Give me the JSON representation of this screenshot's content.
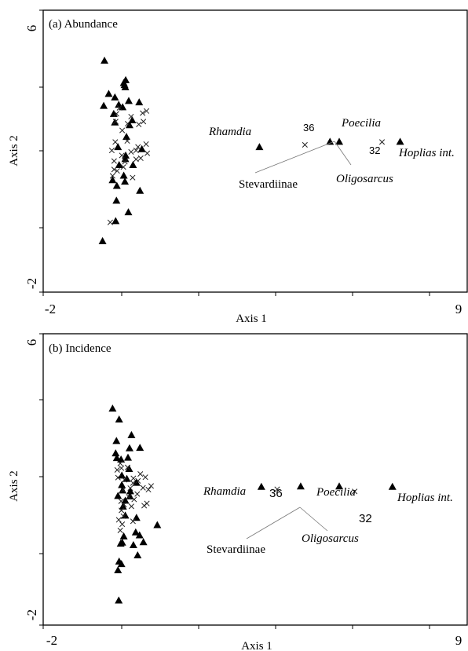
{
  "chart_data": [
    {
      "type": "scatter",
      "title": "(a) Abundance",
      "xlabel": "Axis 1",
      "ylabel": "Axis 2",
      "xlim": [
        -2,
        9
      ],
      "ylim": [
        -2,
        6
      ],
      "x_tick_labels": [
        "-2",
        "9"
      ],
      "y_tick_labels": [
        "6",
        "-2"
      ],
      "grid": false,
      "series": [
        {
          "marker": "triangle",
          "points": [
            [
              -0.41,
              4.57
            ],
            [
              -0.3,
              3.63
            ],
            [
              -0.43,
              3.29
            ],
            [
              -0.14,
              3.53
            ],
            [
              0.09,
              3.94
            ],
            [
              0.14,
              4.02
            ],
            [
              0.13,
              3.82
            ],
            [
              0.11,
              3.88
            ],
            [
              -0.04,
              3.32
            ],
            [
              0.22,
              3.43
            ],
            [
              0.49,
              3.39
            ],
            [
              0.06,
              3.25
            ],
            [
              -0.17,
              3.06
            ],
            [
              0.31,
              2.88
            ],
            [
              0.24,
              2.74
            ],
            [
              -0.14,
              2.82
            ],
            [
              0.16,
              2.41
            ],
            [
              -0.06,
              2.12
            ],
            [
              0.14,
              1.88
            ],
            [
              0.56,
              2.06
            ],
            [
              -0.03,
              1.61
            ],
            [
              0.13,
              1.78
            ],
            [
              0.33,
              1.61
            ],
            [
              0.09,
              1.31
            ],
            [
              -0.2,
              1.18
            ],
            [
              0.12,
              1.14
            ],
            [
              -0.09,
              1.02
            ],
            [
              0.51,
              0.88
            ],
            [
              -0.1,
              0.6
            ],
            [
              0.21,
              0.27
            ],
            [
              -0.12,
              0.02
            ],
            [
              -0.46,
              -0.55
            ],
            [
              3.61,
              2.12
            ],
            [
              5.44,
              2.27
            ],
            [
              5.68,
              2.27
            ],
            [
              7.26,
              2.27
            ]
          ]
        },
        {
          "marker": "cross",
          "points": [
            [
              -0.02,
              3.23
            ],
            [
              -0.1,
              3.06
            ],
            [
              -0.12,
              2.84
            ],
            [
              0.28,
              2.98
            ],
            [
              0.58,
              3.08
            ],
            [
              0.68,
              3.14
            ],
            [
              0.19,
              2.78
            ],
            [
              0.48,
              2.76
            ],
            [
              0.6,
              2.84
            ],
            [
              0.05,
              2.59
            ],
            [
              0.18,
              2.29
            ],
            [
              -0.13,
              2.26
            ],
            [
              -0.22,
              2.02
            ],
            [
              0.67,
              2.2
            ],
            [
              0.46,
              2.12
            ],
            [
              0.41,
              2.02
            ],
            [
              0.28,
              1.98
            ],
            [
              0.7,
              1.94
            ],
            [
              0.04,
              1.88
            ],
            [
              -0.16,
              1.72
            ],
            [
              0.53,
              1.8
            ],
            [
              0.41,
              1.77
            ],
            [
              0.12,
              1.7
            ],
            [
              0.08,
              1.55
            ],
            [
              -0.16,
              1.48
            ],
            [
              -0.08,
              1.44
            ],
            [
              -0.2,
              1.3
            ],
            [
              0.32,
              1.25
            ],
            [
              -0.26,
              -0.02
            ],
            [
              4.79,
              2.18
            ],
            [
              6.79,
              2.26
            ]
          ]
        }
      ],
      "annotations": [
        {
          "text": "Rhamdia",
          "x": 3.61,
          "y": 2.12,
          "italic": true
        },
        {
          "text": "36",
          "x": 4.79,
          "y": 2.18
        },
        {
          "text": "Poecilia",
          "x": 5.68,
          "y": 2.27,
          "italic": true
        },
        {
          "text": "32",
          "x": 6.79,
          "y": 2.26
        },
        {
          "text": "Hoplias int.",
          "x": 7.26,
          "y": 2.27,
          "italic": true
        },
        {
          "text": "Stevardiinae",
          "italic": false
        },
        {
          "text": "Oligosarcus",
          "italic": true
        }
      ]
    },
    {
      "type": "scatter",
      "title": "(b) Incidence",
      "xlabel": "Axis 1",
      "ylabel": "Axis 2",
      "xlim": [
        -2,
        9
      ],
      "ylim": [
        -2,
        6
      ],
      "x_tick_labels": [
        "-2",
        "9"
      ],
      "y_tick_labels": [
        "6",
        "-2"
      ],
      "grid": false,
      "series": [
        {
          "marker": "triangle",
          "points": [
            [
              -0.2,
              3.95
            ],
            [
              -0.03,
              3.65
            ],
            [
              0.29,
              3.22
            ],
            [
              -0.1,
              3.06
            ],
            [
              0.24,
              2.86
            ],
            [
              -0.12,
              2.72
            ],
            [
              0.51,
              2.87
            ],
            [
              -0.09,
              2.59
            ],
            [
              0.02,
              2.55
            ],
            [
              0.2,
              2.6
            ],
            [
              0.23,
              2.29
            ],
            [
              0.04,
              2.11
            ],
            [
              0.17,
              2.02
            ],
            [
              0.04,
              1.85
            ],
            [
              0.42,
              1.91
            ],
            [
              0.06,
              1.7
            ],
            [
              0.26,
              1.68
            ],
            [
              0.25,
              1.54
            ],
            [
              -0.06,
              1.55
            ],
            [
              0.13,
              1.42
            ],
            [
              0.07,
              1.26
            ],
            [
              0.13,
              1.01
            ],
            [
              0.42,
              0.95
            ],
            [
              0.09,
              0.44
            ],
            [
              0.4,
              0.55
            ],
            [
              0.5,
              0.47
            ],
            [
              0.96,
              0.75
            ],
            [
              0.6,
              0.28
            ],
            [
              0.05,
              0.27
            ],
            [
              0.01,
              0.24
            ],
            [
              0.34,
              0.2
            ],
            [
              0.45,
              -0.08
            ],
            [
              0.03,
              -0.32
            ],
            [
              -0.06,
              -0.49
            ],
            [
              -0.03,
              -0.25
            ],
            [
              -0.04,
              -1.32
            ],
            [
              3.66,
              1.8
            ],
            [
              4.68,
              1.81
            ],
            [
              5.68,
              1.81
            ],
            [
              7.06,
              1.8
            ]
          ]
        },
        {
          "marker": "cross",
          "points": [
            [
              0.0,
              2.44
            ],
            [
              0.03,
              2.31
            ],
            [
              -0.08,
              2.26
            ],
            [
              0.19,
              2.33
            ],
            [
              0.52,
              2.15
            ],
            [
              0.34,
              2.03
            ],
            [
              0.65,
              2.06
            ],
            [
              -0.06,
              2.05
            ],
            [
              0.11,
              1.99
            ],
            [
              0.33,
              1.9
            ],
            [
              0.46,
              1.96
            ],
            [
              0.8,
              1.82
            ],
            [
              0.59,
              1.77
            ],
            [
              0.73,
              1.72
            ],
            [
              0.26,
              1.76
            ],
            [
              0.07,
              1.71
            ],
            [
              0.44,
              1.6
            ],
            [
              0.22,
              1.52
            ],
            [
              0.36,
              1.45
            ],
            [
              0.02,
              1.4
            ],
            [
              0.1,
              1.31
            ],
            [
              0.69,
              1.34
            ],
            [
              0.29,
              1.26
            ],
            [
              0.03,
              1.15
            ],
            [
              0.62,
              1.28
            ],
            [
              0.08,
              0.99
            ],
            [
              -0.04,
              0.89
            ],
            [
              0.33,
              0.85
            ],
            [
              0.05,
              0.77
            ],
            [
              0.0,
              0.6
            ],
            [
              4.07,
              1.73
            ],
            [
              6.08,
              1.67
            ]
          ]
        }
      ],
      "annotations": [
        {
          "text": "Rhamdia",
          "italic": true
        },
        {
          "text": "36"
        },
        {
          "text": "Poecilia",
          "italic": true
        },
        {
          "text": "32"
        },
        {
          "text": "Hoplias int.",
          "italic": true
        },
        {
          "text": "Stevardiinae",
          "italic": false
        },
        {
          "text": "Oligosarcus",
          "italic": true
        }
      ]
    }
  ]
}
